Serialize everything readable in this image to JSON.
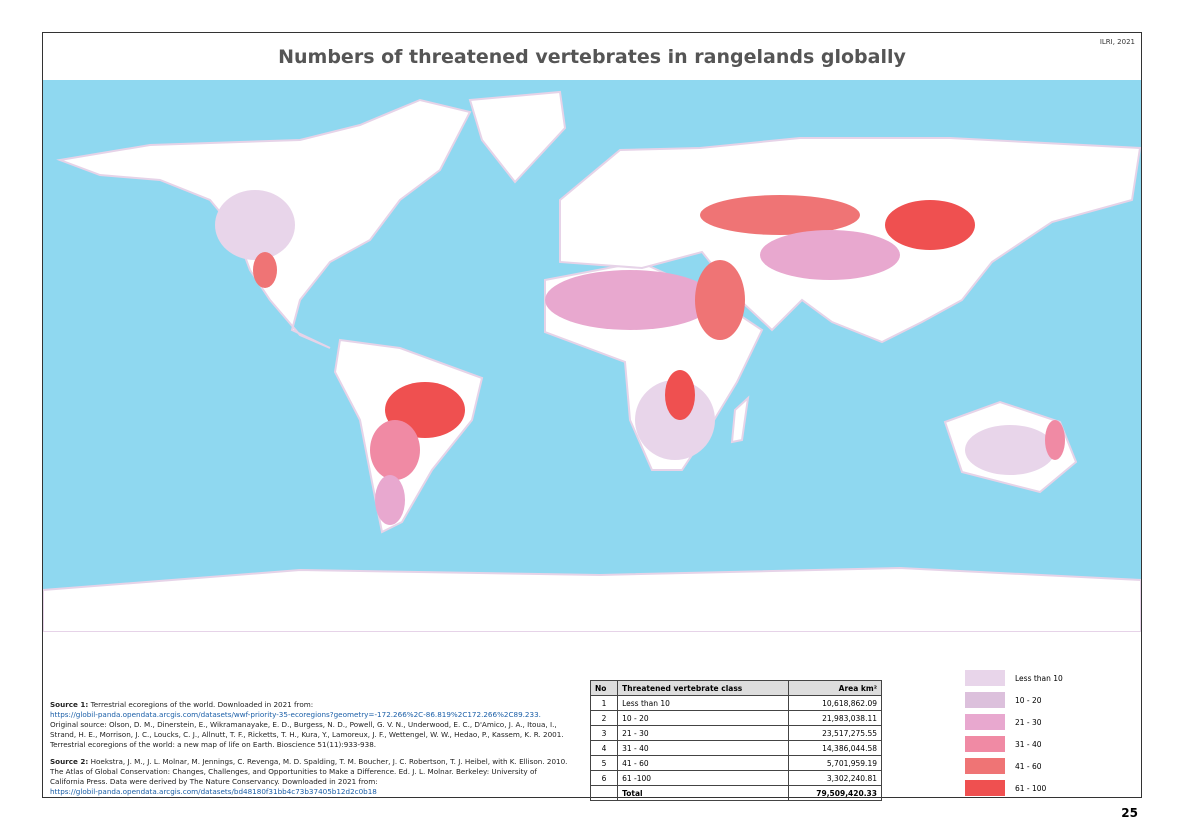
{
  "header": {
    "title": "Numbers of threatened vertebrates in rangelands globally",
    "credit": "ILRI, 2021"
  },
  "sources": [
    {
      "label": "Source 1:",
      "text": "Terrestrial ecoregions of the world. Downloaded in  2021 from:",
      "link": "https://globil-panda.opendata.arcgis.com/datasets/wwf-priority-35-ecoregions?geometry=-172.266%2C-86.819%2C172.266%2C89.233.",
      "text2": "Original source: Olson, D. M., Dinerstein, E., Wikramanayake, E. D., Burgess, N. D., Powell, G. V. N., Underwood, E. C., D'Amico, J. A., Itoua, I., Strand, H. E., Morrison, J. C., Loucks, C. J., Allnutt, T. F., Ricketts, T. H., Kura, Y., Lamoreux, J. F., Wettengel, W. W., Hedao, P., Kassem, K. R. 2001. Terrestrial ecoregions of the world: a new map of life on Earth. Bioscience 51(11):933-938."
    },
    {
      "label": "Source 2:",
      "text": "Hoekstra, J. M., J. L. Molnar, M. Jennings, C. Revenga, M. D. Spalding, T. M. Boucher, J. C. Robertson, T. J. Heibel, with K. Ellison. 2010. The Atlas of Global Conservation: Changes, Challenges, and Opportunities to Make a Difference. Ed. J. L. Molnar. Berkeley: University of California Press. Data were derived by The Nature Conservancy. Downloaded in 2021 from:",
      "link": "https://globil-panda.opendata.arcgis.com/datasets/bd48180f31bb4c73b37405b12d2c0b18"
    }
  ],
  "table": {
    "columns": [
      "No",
      "Threatened vertebrate class",
      "Area km²"
    ],
    "rows": [
      [
        "1",
        "Less than 10",
        "10,618,862.09"
      ],
      [
        "2",
        "10 - 20",
        "21,983,038.11"
      ],
      [
        "3",
        "21 - 30",
        "23,517,275.55"
      ],
      [
        "4",
        "31 - 40",
        "14,386,044.58"
      ],
      [
        "5",
        "41 - 60",
        "5,701,959.19"
      ],
      [
        "6",
        "61 -100",
        "3,302,240.81"
      ]
    ],
    "total": [
      "Total",
      "79,509,420.33"
    ]
  },
  "legend": [
    {
      "label": "Less than 10",
      "color": "#e8d5ea"
    },
    {
      "label": "10 - 20",
      "color": "#dcc0dc"
    },
    {
      "label": "21 - 30",
      "color": "#e8a8cf"
    },
    {
      "label": "31 - 40",
      "color": "#f08aa4"
    },
    {
      "label": "41 - 60",
      "color": "#ef7475"
    },
    {
      "label": "61 - 100",
      "color": "#ef5050"
    }
  ],
  "page_number": "25"
}
